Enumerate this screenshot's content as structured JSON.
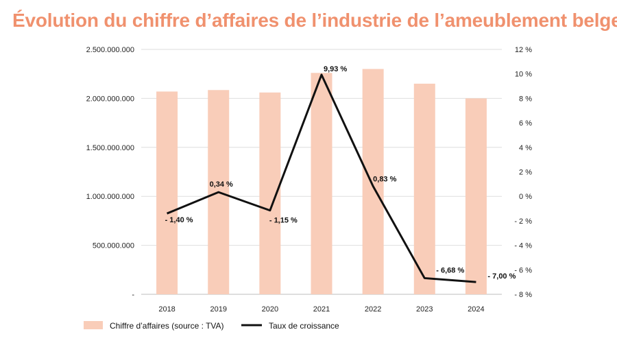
{
  "chart_data": {
    "type": "bar+line",
    "title": "Évolution du chiffre d’affaires de l’industrie de l’ameublement belge",
    "categories": [
      "2018",
      "2019",
      "2020",
      "2021",
      "2022",
      "2023",
      "2024"
    ],
    "series": [
      {
        "name": "Chiffre d’affaires (source : TVA)",
        "kind": "bar",
        "axis": "left",
        "color": "#f9cdb9",
        "values": [
          2070000000,
          2085000000,
          2060000000,
          2260000000,
          2300000000,
          2150000000,
          2000000000
        ]
      },
      {
        "name": "Taux de croissance",
        "kind": "line",
        "axis": "right",
        "color": "#111111",
        "values": [
          -1.4,
          0.34,
          -1.15,
          9.93,
          0.83,
          -6.68,
          -7.0
        ],
        "labels": [
          "- 1,40 %",
          "0,34 %",
          "- 1,15 %",
          "9,93 %",
          "0,83 %",
          "- 6,68 %",
          "- 7,00 %"
        ]
      }
    ],
    "y_left": {
      "range": [
        0,
        2500000000
      ],
      "ticks": [
        0,
        500000000,
        1000000000,
        1500000000,
        2000000000,
        2500000000
      ],
      "tick_labels": [
        "-",
        "500.000.000",
        "1.000.000.000",
        "1.500.000.000",
        "2.000.000.000",
        "2.500.000.000"
      ]
    },
    "y_right": {
      "range": [
        -8,
        12
      ],
      "ticks": [
        -8,
        -6,
        -4,
        -2,
        0,
        2,
        4,
        6,
        8,
        10,
        12
      ],
      "tick_labels": [
        "- 8 %",
        "- 6 %",
        "- 4 %",
        "- 2 %",
        "0 %",
        "2 %",
        "4 %",
        "6 %",
        "8 %",
        "10 %",
        "12 %"
      ]
    },
    "grid": true,
    "legend": "bottom-left"
  }
}
